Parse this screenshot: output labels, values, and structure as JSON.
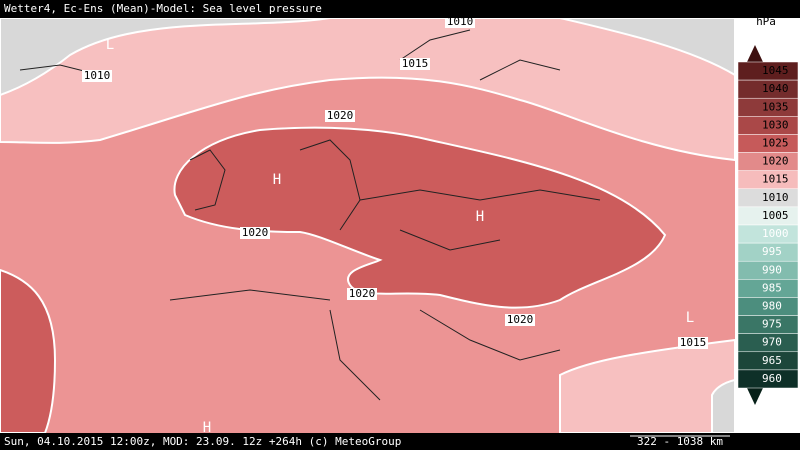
{
  "header": {
    "title": "Wetter4, Ec-Ens (Mean)-Model: Sea level pressure"
  },
  "footer": {
    "text": "Sun, 04.10.2015 12:00z, MOD: 23.09. 12z +264h (c) MeteoGroup",
    "scale": "322 - 1038 km"
  },
  "legend": {
    "unit": "hPa",
    "levels": [
      {
        "label": "1045",
        "color": "#5e1e1e"
      },
      {
        "label": "1040",
        "color": "#742c2c"
      },
      {
        "label": "1035",
        "color": "#8e3a3a"
      },
      {
        "label": "1030",
        "color": "#aa4848"
      },
      {
        "label": "1025",
        "color": "#c65a5a"
      },
      {
        "label": "1020",
        "color": "#e28a8a"
      },
      {
        "label": "1015",
        "color": "#f6bcbc"
      },
      {
        "label": "1010",
        "color": "#dcdcdc"
      },
      {
        "label": "1005",
        "color": "#e6f2ee"
      },
      {
        "label": "1000",
        "color": "#c2e4dc"
      },
      {
        "label": "995",
        "color": "#a2d2c6"
      },
      {
        "label": "990",
        "color": "#82bcae"
      },
      {
        "label": "985",
        "color": "#64a696"
      },
      {
        "label": "980",
        "color": "#4c8e7e"
      },
      {
        "label": "975",
        "color": "#3a7666"
      },
      {
        "label": "970",
        "color": "#2a5e50"
      },
      {
        "label": "965",
        "color": "#1c463a"
      },
      {
        "label": "960",
        "color": "#0e3028"
      }
    ]
  },
  "contour_labels": [
    "1010",
    "1010",
    "1015",
    "1020",
    "1020",
    "1020",
    "1020",
    "1015"
  ],
  "pressure_centers": [
    "L",
    "L",
    "H",
    "H",
    "H"
  ]
}
